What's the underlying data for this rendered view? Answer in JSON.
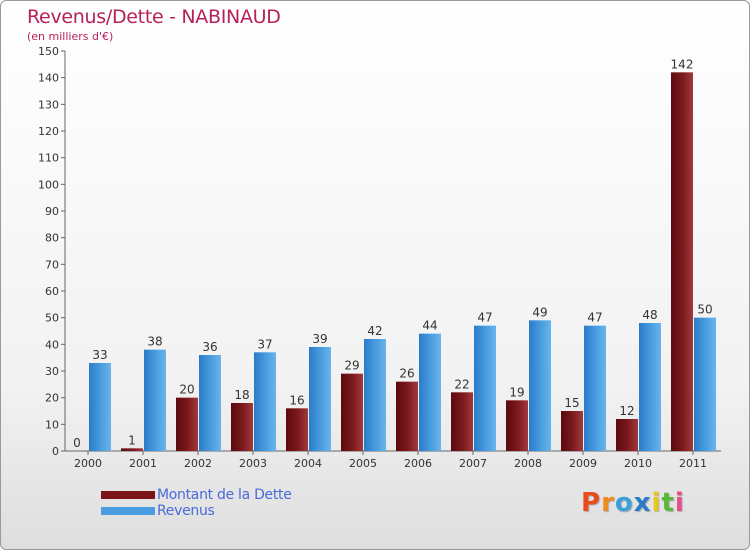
{
  "chart_data": {
    "type": "bar",
    "title": "Revenus/Dette - NABINAUD",
    "subtitle": "(en milliers d'€)",
    "categories": [
      "2000",
      "2001",
      "2002",
      "2003",
      "2004",
      "2005",
      "2006",
      "2007",
      "2008",
      "2009",
      "2010",
      "2011"
    ],
    "series": [
      {
        "name": "Montant de la Dette",
        "values": [
          0,
          1,
          20,
          18,
          16,
          29,
          26,
          22,
          19,
          15,
          12,
          142
        ],
        "color": "#7a1418"
      },
      {
        "name": "Revenus",
        "values": [
          33,
          38,
          36,
          37,
          39,
          42,
          44,
          47,
          49,
          47,
          48,
          50
        ],
        "color": "#4a9de0"
      }
    ],
    "ylim": [
      0,
      150
    ],
    "yticks": [
      0,
      10,
      20,
      30,
      40,
      50,
      60,
      70,
      80,
      90,
      100,
      110,
      120,
      130,
      140,
      150
    ],
    "grid": false,
    "legend_position": "bottom-left"
  },
  "logo": {
    "letters": [
      "P",
      "r",
      "o",
      "x",
      "i",
      "t",
      "i"
    ],
    "colors": [
      "#e84c1c",
      "#f08a1c",
      "#3aa0d8",
      "#2a7cc8",
      "#e8c81c",
      "#58b838",
      "#e84c8c"
    ]
  },
  "colors": {
    "accent": "#b8205a",
    "legend_text": "#4a6ad8"
  }
}
